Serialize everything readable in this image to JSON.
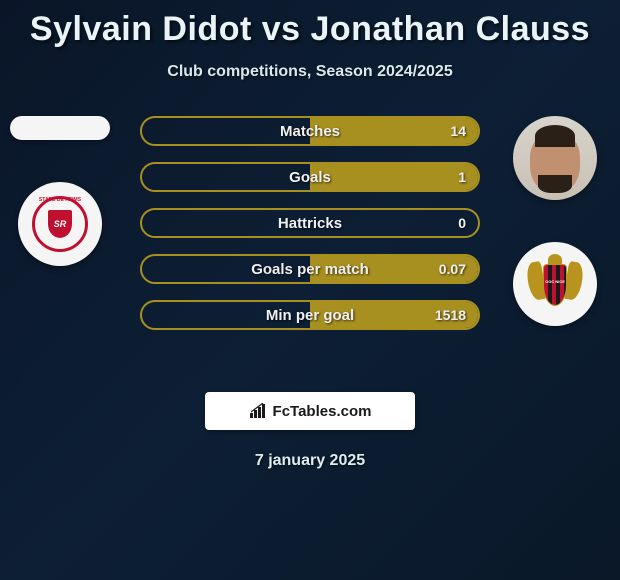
{
  "title": "Sylvain Didot vs Jonathan Clauss",
  "subtitle": "Club competitions, Season 2024/2025",
  "date": "7 january 2025",
  "brand": "FcTables.com",
  "colors": {
    "background_start": "#0a1628",
    "background_end": "#0a1828",
    "bar_border": "#a89020",
    "bar_fill": "#a89020",
    "text_primary": "#e8f4f8",
    "reims_red": "#c01030",
    "nice_gold": "#b8941f"
  },
  "player1": {
    "name": "Sylvain Didot",
    "club": "Stade de Reims",
    "club_abbrev": "SR"
  },
  "player2": {
    "name": "Jonathan Clauss",
    "club": "OGC Nice",
    "club_abbrev": "OGC NICE"
  },
  "stats": [
    {
      "label": "Matches",
      "left_value": "",
      "right_value": "14",
      "left_pct": 0,
      "right_pct": 100
    },
    {
      "label": "Goals",
      "left_value": "",
      "right_value": "1",
      "left_pct": 0,
      "right_pct": 100
    },
    {
      "label": "Hattricks",
      "left_value": "",
      "right_value": "0",
      "left_pct": 0,
      "right_pct": 0
    },
    {
      "label": "Goals per match",
      "left_value": "",
      "right_value": "0.07",
      "left_pct": 0,
      "right_pct": 100
    },
    {
      "label": "Min per goal",
      "left_value": "",
      "right_value": "1518",
      "left_pct": 0,
      "right_pct": 100
    }
  ]
}
